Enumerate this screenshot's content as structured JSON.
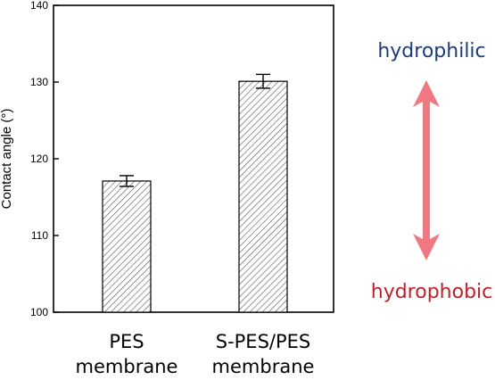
{
  "chart_data": {
    "type": "bar",
    "categories": [
      [
        "PES",
        "membrane"
      ],
      [
        "S-PES/PES",
        "membrane"
      ]
    ],
    "values": [
      117.1,
      130.1
    ],
    "errors": [
      0.7,
      0.9
    ],
    "title": "",
    "xlabel": "",
    "ylabel": "Contact angle (°)",
    "ylim": [
      100,
      140
    ],
    "yticks": [
      100,
      110,
      120,
      130,
      140
    ],
    "grid": false,
    "bar_fill": "hatched",
    "colors": {
      "bar_stroke": "#000000",
      "hatch": "#555555"
    }
  },
  "annotation": {
    "top_label": "hydrophilic",
    "bottom_label": "hydrophobic",
    "top_color": "#1f3b7a",
    "bottom_color": "#c0202a",
    "arrow_color": "#f07880",
    "arrow_direction": "double"
  }
}
